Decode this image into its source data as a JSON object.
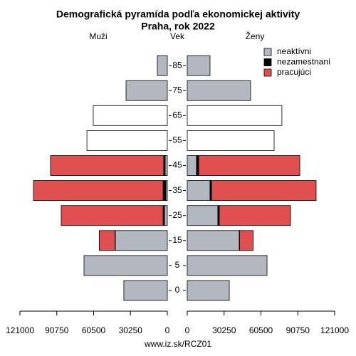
{
  "chart_data": {
    "type": "pyramid",
    "title": "Demografická pyramída podľa ekonomickej aktivity",
    "subtitle": "Praha, rok 2022",
    "left_label": "Muži",
    "center_label": "Vek",
    "right_label": "Ženy",
    "footer": "www.iz.sk/RCZ01",
    "categories": [
      "0",
      "5",
      "15",
      "25",
      "35",
      "45",
      "55",
      "65",
      "75",
      "85"
    ],
    "xlim": [
      0,
      121000
    ],
    "xticks": [
      0,
      30250,
      60500,
      90750,
      121000
    ],
    "series": [
      {
        "name": "neaktívni",
        "color": "#b3b7bf",
        "male": [
          35700,
          68400,
          42700,
          2300,
          1200,
          1800,
          null,
          null,
          33900,
          8200
        ],
        "female": [
          34500,
          65500,
          42700,
          25100,
          18700,
          7600,
          null,
          null,
          52000,
          18700
        ]
      },
      {
        "name": "nezamestnaní",
        "color": "#000000",
        "male": [
          null,
          null,
          300,
          1200,
          2300,
          1200,
          null,
          null,
          null,
          null
        ],
        "female": [
          null,
          null,
          300,
          1200,
          1200,
          1800,
          null,
          null,
          null,
          null
        ]
      },
      {
        "name": "pracujúci",
        "color": "#e05050",
        "male": [
          null,
          null,
          12900,
          83600,
          106400,
          92900,
          null,
          null,
          null,
          null
        ],
        "female": [
          null,
          null,
          11100,
          58500,
          85900,
          83000,
          null,
          null,
          null,
          null
        ]
      },
      {
        "color": "#ffffff",
        "male": [
          null,
          null,
          null,
          null,
          null,
          null,
          66000,
          60800,
          null,
          null
        ],
        "female": [
          null,
          null,
          null,
          null,
          null,
          null,
          71300,
          77700,
          null,
          null
        ]
      }
    ]
  }
}
